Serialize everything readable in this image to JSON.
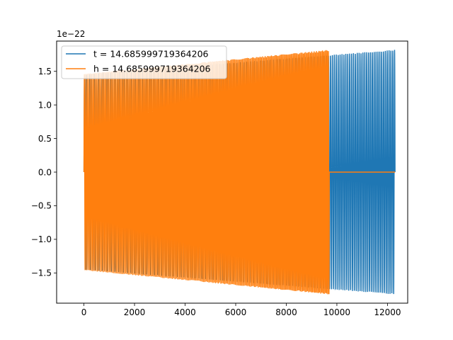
{
  "chart_data": {
    "type": "line",
    "title": "",
    "xlabel": "",
    "ylabel": "",
    "y_scale_label": "1e−22",
    "xlim": [
      -1080,
      12800
    ],
    "ylim": [
      -1.95e-22,
      1.95e-22
    ],
    "x_ticks": [
      0,
      2000,
      4000,
      6000,
      8000,
      10000,
      12000
    ],
    "x_tick_labels": [
      "0",
      "2000",
      "4000",
      "6000",
      "8000",
      "10000",
      "12000"
    ],
    "y_ticks": [
      -1.5,
      -1.0,
      -0.5,
      0.0,
      0.5,
      1.0,
      1.5
    ],
    "y_tick_labels": [
      "−1.5",
      "−1.0",
      "−0.5",
      "0.0",
      "0.5",
      "1.0",
      "1.5"
    ],
    "grid": false,
    "legend_position": "top-left",
    "series": [
      {
        "name": "t = 14.685999719364206",
        "color": "#1f77b4",
        "signal_end_x": 12300,
        "amplitude_start": 1.45e-22,
        "amplitude_end": 1.82e-22,
        "oscillation_cycles": 130
      },
      {
        "name": "h = 14.685999719364206",
        "color": "#ff7f0e",
        "signal_end_x": 9700,
        "x_end": 12300,
        "amplitude_start": 1.46e-22,
        "amplitude_end": 1.82e-22,
        "oscillation_cycles": 160,
        "tail_value": 0
      }
    ]
  }
}
